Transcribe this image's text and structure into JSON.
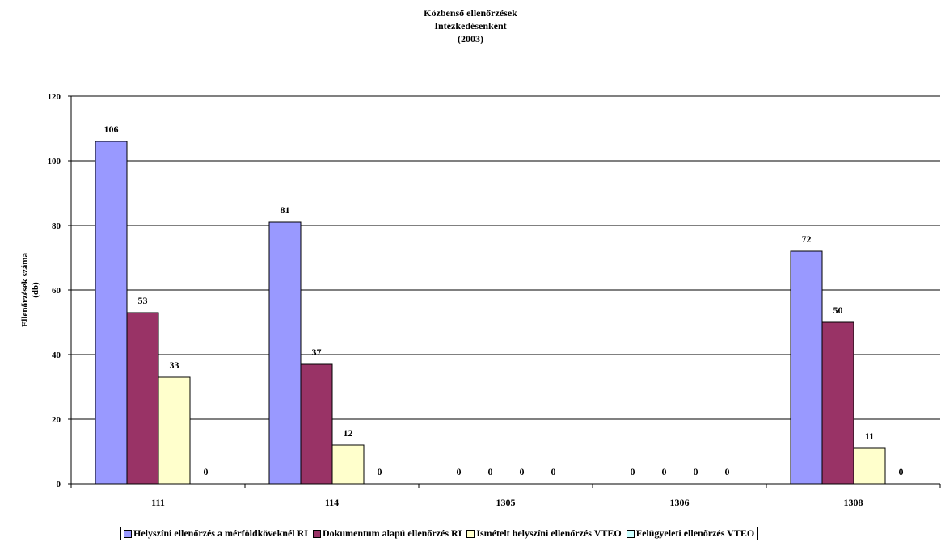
{
  "chart_data": {
    "type": "bar",
    "title_lines": [
      "Közbenső ellenőrzések",
      "Intézkedésenként",
      "(2003)"
    ],
    "xlabel": "",
    "ylabel_lines": [
      "Ellenőrzések száma",
      "(db)"
    ],
    "categories": [
      "111",
      "114",
      "1305",
      "1306",
      "1308"
    ],
    "ylim": [
      0,
      120
    ],
    "yticks": [
      0,
      20,
      40,
      60,
      80,
      100,
      120
    ],
    "grid": true,
    "legend_position": "bottom",
    "data_labels": true,
    "series": [
      {
        "name": "Helyszíni ellenőrzés a mérföldköveknél RI",
        "color": "#9999ff",
        "values": [
          106,
          81,
          0,
          0,
          72
        ]
      },
      {
        "name": "Dokumentum alapú ellenőrzés RI",
        "color": "#993366",
        "values": [
          53,
          37,
          0,
          0,
          50
        ]
      },
      {
        "name": "Ismételt helyszíni ellenőrzés VTEO",
        "color": "#ffffcc",
        "values": [
          33,
          12,
          0,
          0,
          11
        ]
      },
      {
        "name": "Felügyeleti ellenőrzés VTEO",
        "color": "#ccffff",
        "values": [
          0,
          0,
          0,
          0,
          0
        ]
      }
    ]
  }
}
